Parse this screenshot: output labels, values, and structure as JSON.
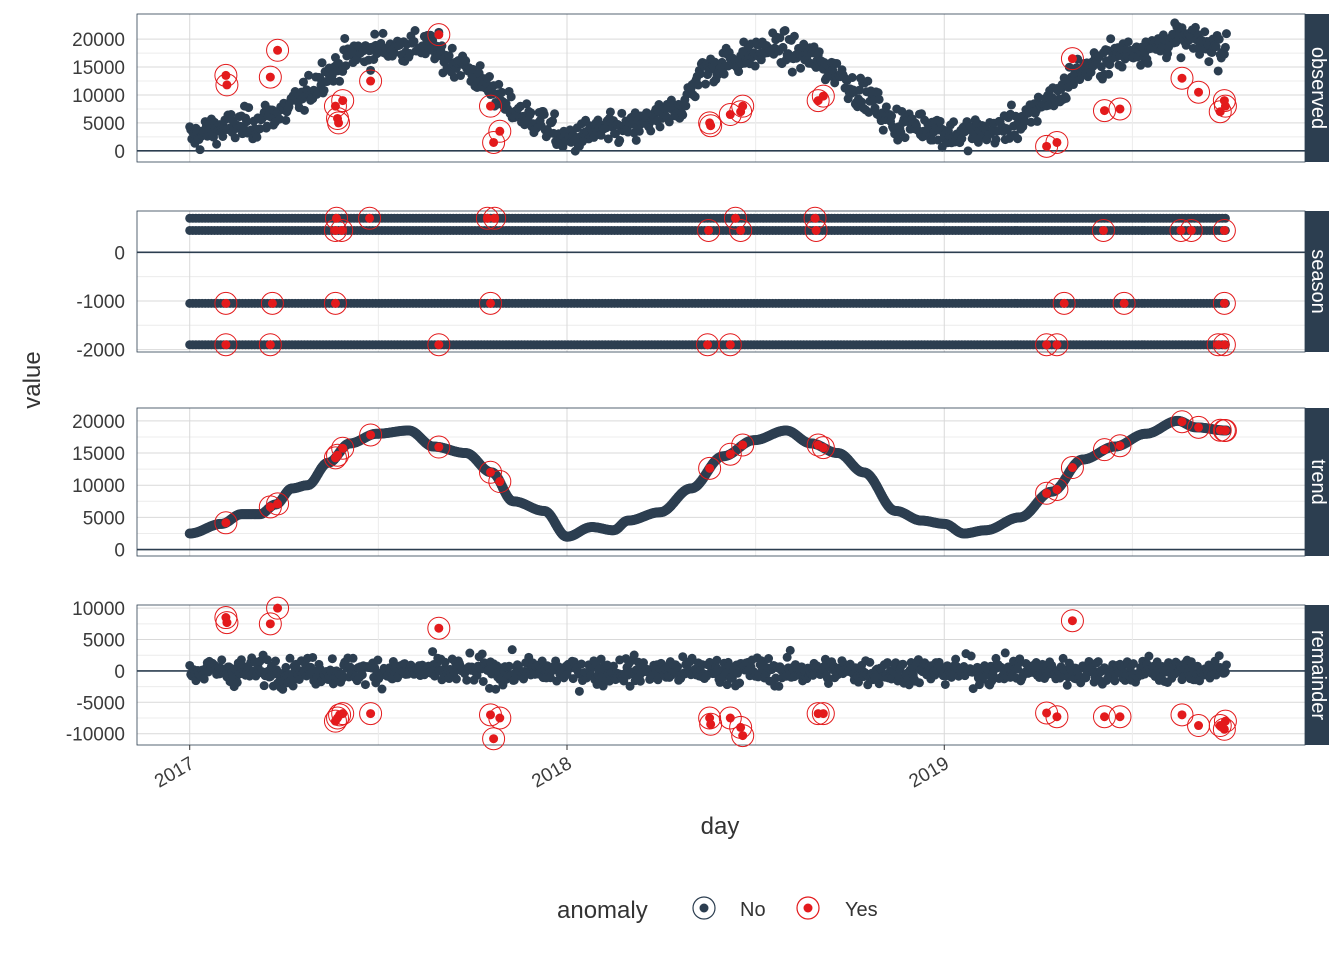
{
  "colors": {
    "no": "#2c3e50",
    "yes": "#e31a1c",
    "strip": "#2c3e50",
    "grid": "#d9d9d9",
    "zero_line": "#2c3e50"
  },
  "chart_data": {
    "type": "scatter",
    "xlabel": "day",
    "ylabel": "value",
    "x_range": [
      "2016-11-11",
      "2019-12-16"
    ],
    "x_ticks": [
      "2017-01-01",
      "2018-01-01",
      "2019-01-01"
    ],
    "x_tick_labels": [
      "2017",
      "2018",
      "2019"
    ],
    "x_data_range": [
      "2017-01-01",
      "2019-10-01"
    ],
    "legend": {
      "title": "anomaly",
      "placement": "bottom",
      "entries": [
        {
          "key": "no",
          "label": "No"
        },
        {
          "key": "yes",
          "label": "Yes"
        }
      ]
    },
    "panels": [
      {
        "name": "observed",
        "ylim": [
          -2000,
          24500
        ],
        "yticks": [
          0,
          5000,
          10000,
          15000,
          20000
        ],
        "ytick_labels": [
          "0",
          "5000",
          "10000",
          "15000",
          "20000"
        ],
        "anchors": [
          [
            "2017-01-01",
            2500
          ],
          [
            "2017-02-01",
            4000
          ],
          [
            "2017-03-01",
            4800
          ],
          [
            "2017-04-01",
            7000
          ],
          [
            "2017-04-20",
            9500
          ],
          [
            "2017-05-15",
            14000
          ],
          [
            "2017-06-10",
            17500
          ],
          [
            "2017-07-15",
            18500
          ],
          [
            "2017-08-15",
            18800
          ],
          [
            "2017-09-15",
            16000
          ],
          [
            "2017-10-15",
            12000
          ],
          [
            "2017-11-05",
            7500
          ],
          [
            "2017-12-01",
            5500
          ],
          [
            "2018-01-01",
            2000
          ],
          [
            "2018-02-01",
            3500
          ],
          [
            "2018-03-01",
            4000
          ],
          [
            "2018-04-01",
            5800
          ],
          [
            "2018-04-20",
            8000
          ],
          [
            "2018-05-15",
            14500
          ],
          [
            "2018-06-15",
            16500
          ],
          [
            "2018-07-20",
            18500
          ],
          [
            "2018-08-20",
            17000
          ],
          [
            "2018-09-15",
            14500
          ],
          [
            "2018-10-15",
            10000
          ],
          [
            "2018-11-15",
            5000
          ],
          [
            "2018-12-15",
            4500
          ],
          [
            "2019-01-10",
            3000
          ],
          [
            "2019-02-15",
            3500
          ],
          [
            "2019-03-15",
            5000
          ],
          [
            "2019-04-15",
            9500
          ],
          [
            "2019-05-15",
            14500
          ],
          [
            "2019-06-15",
            17000
          ],
          [
            "2019-07-15",
            18500
          ],
          [
            "2019-08-15",
            20000
          ],
          [
            "2019-10-01",
            18500
          ]
        ],
        "noise": 2400,
        "anomalies": [
          [
            "2017-02-05",
            13500
          ],
          [
            "2017-02-06",
            11800
          ],
          [
            "2017-03-20",
            13200
          ],
          [
            "2017-03-27",
            18000
          ],
          [
            "2017-05-22",
            8000
          ],
          [
            "2017-05-24",
            5800
          ],
          [
            "2017-05-25",
            5000
          ],
          [
            "2017-05-29",
            9000
          ],
          [
            "2017-06-25",
            12500
          ],
          [
            "2017-08-30",
            20800
          ],
          [
            "2017-10-19",
            8000
          ],
          [
            "2017-10-22",
            1500
          ],
          [
            "2017-10-28",
            3500
          ],
          [
            "2018-05-19",
            5000
          ],
          [
            "2018-05-20",
            4500
          ],
          [
            "2018-06-08",
            6500
          ],
          [
            "2018-06-18",
            7000
          ],
          [
            "2018-06-20",
            8000
          ],
          [
            "2018-09-01",
            9000
          ],
          [
            "2018-09-06",
            9800
          ],
          [
            "2019-04-10",
            800
          ],
          [
            "2019-04-20",
            1500
          ],
          [
            "2019-05-05",
            16500
          ],
          [
            "2019-06-05",
            7200
          ],
          [
            "2019-06-20",
            7500
          ],
          [
            "2019-08-19",
            13000
          ],
          [
            "2019-09-04",
            10500
          ],
          [
            "2019-09-25",
            7000
          ],
          [
            "2019-09-29",
            9000
          ],
          [
            "2019-09-30",
            8000
          ]
        ]
      },
      {
        "name": "season",
        "ylim": [
          -2050,
          850
        ],
        "yticks": [
          -2000,
          -1000,
          0
        ],
        "ytick_labels": [
          "-2000",
          "-1000",
          "0"
        ],
        "levels": [
          700,
          450,
          -1050,
          -1900
        ],
        "level_start": [
          "2017-01-01",
          "2017-01-01",
          "2017-01-01",
          "2017-01-01"
        ],
        "anomalies": [
          [
            "2017-05-23",
            700
          ],
          [
            "2017-06-24",
            700
          ],
          [
            "2017-10-16",
            700
          ],
          [
            "2017-10-23",
            700
          ],
          [
            "2018-06-13",
            700
          ],
          [
            "2018-08-29",
            700
          ],
          [
            "2017-05-22",
            450
          ],
          [
            "2017-05-28",
            450
          ],
          [
            "2018-05-18",
            450
          ],
          [
            "2018-06-18",
            450
          ],
          [
            "2018-08-30",
            450
          ],
          [
            "2019-06-04",
            450
          ],
          [
            "2019-08-18",
            450
          ],
          [
            "2019-08-28",
            450
          ],
          [
            "2019-09-29",
            450
          ],
          [
            "2017-02-05",
            -1050
          ],
          [
            "2017-03-22",
            -1050
          ],
          [
            "2017-05-22",
            -1050
          ],
          [
            "2017-10-19",
            -1050
          ],
          [
            "2019-04-27",
            -1050
          ],
          [
            "2019-06-24",
            -1050
          ],
          [
            "2019-09-29",
            -1050
          ],
          [
            "2017-02-05",
            -1900
          ],
          [
            "2017-03-20",
            -1900
          ],
          [
            "2017-08-30",
            -1900
          ],
          [
            "2018-05-17",
            -1900
          ],
          [
            "2018-06-08",
            -1900
          ],
          [
            "2019-04-10",
            -1900
          ],
          [
            "2019-04-20",
            -1900
          ],
          [
            "2019-09-23",
            -1900
          ],
          [
            "2019-09-29",
            -1900
          ]
        ]
      },
      {
        "name": "trend",
        "ylim": [
          -1000,
          22000
        ],
        "yticks": [
          0,
          5000,
          10000,
          15000,
          20000
        ],
        "ytick_labels": [
          "0",
          "5000",
          "10000",
          "15000",
          "20000"
        ],
        "anchors": [
          [
            "2017-01-01",
            2500
          ],
          [
            "2017-02-01",
            4000
          ],
          [
            "2017-02-20",
            5500
          ],
          [
            "2017-03-10",
            5500
          ],
          [
            "2017-03-25",
            7000
          ],
          [
            "2017-04-10",
            9500
          ],
          [
            "2017-04-25",
            10000
          ],
          [
            "2017-05-15",
            13500
          ],
          [
            "2017-06-05",
            16500
          ],
          [
            "2017-07-01",
            18000
          ],
          [
            "2017-08-01",
            18500
          ],
          [
            "2017-08-25",
            16000
          ],
          [
            "2017-09-25",
            15000
          ],
          [
            "2017-10-20",
            12000
          ],
          [
            "2017-11-10",
            7500
          ],
          [
            "2017-12-10",
            6000
          ],
          [
            "2018-01-01",
            2000
          ],
          [
            "2018-01-25",
            3500
          ],
          [
            "2018-02-15",
            3000
          ],
          [
            "2018-03-01",
            4500
          ],
          [
            "2018-04-01",
            5800
          ],
          [
            "2018-05-01",
            9500
          ],
          [
            "2018-06-01",
            14500
          ],
          [
            "2018-07-01",
            17000
          ],
          [
            "2018-08-01",
            18500
          ],
          [
            "2018-08-25",
            16500
          ],
          [
            "2018-09-20",
            15000
          ],
          [
            "2018-10-15",
            12000
          ],
          [
            "2018-11-15",
            6000
          ],
          [
            "2018-12-10",
            4500
          ],
          [
            "2019-01-01",
            4000
          ],
          [
            "2019-01-20",
            2500
          ],
          [
            "2019-02-10",
            3000
          ],
          [
            "2019-03-15",
            5000
          ],
          [
            "2019-04-15",
            9000
          ],
          [
            "2019-05-15",
            14000
          ],
          [
            "2019-06-15",
            16000
          ],
          [
            "2019-07-15",
            18000
          ],
          [
            "2019-08-15",
            20000
          ],
          [
            "2019-09-01",
            19000
          ],
          [
            "2019-10-01",
            18500
          ]
        ],
        "anomaly_dates": [
          "2017-02-05",
          "2017-03-20",
          "2017-03-27",
          "2017-05-22",
          "2017-05-24",
          "2017-05-29",
          "2017-06-25",
          "2017-08-30",
          "2017-10-19",
          "2017-10-28",
          "2018-05-19",
          "2018-06-08",
          "2018-06-20",
          "2018-09-01",
          "2018-09-06",
          "2019-04-10",
          "2019-04-20",
          "2019-05-05",
          "2019-06-05",
          "2019-06-20",
          "2019-08-19",
          "2019-09-04",
          "2019-09-25",
          "2019-09-29",
          "2019-09-30"
        ]
      },
      {
        "name": "remainder",
        "ylim": [
          -11800,
          10500
        ],
        "yticks": [
          -10000,
          -5000,
          0,
          5000,
          10000
        ],
        "ytick_labels": [
          "-10000",
          "-5000",
          "0",
          "5000",
          "10000"
        ],
        "noise": 1900,
        "anomalies": [
          [
            "2017-02-05",
            8500
          ],
          [
            "2017-02-06",
            7700
          ],
          [
            "2017-03-20",
            7500
          ],
          [
            "2017-03-27",
            10000
          ],
          [
            "2017-05-22",
            -8000
          ],
          [
            "2017-05-24",
            -7500
          ],
          [
            "2017-05-26",
            -7000
          ],
          [
            "2017-05-29",
            -6800
          ],
          [
            "2017-06-25",
            -6800
          ],
          [
            "2017-08-30",
            6800
          ],
          [
            "2017-10-19",
            -7000
          ],
          [
            "2017-10-22",
            -10800
          ],
          [
            "2017-10-28",
            -7500
          ],
          [
            "2018-05-19",
            -7500
          ],
          [
            "2018-05-20",
            -8500
          ],
          [
            "2018-06-08",
            -7500
          ],
          [
            "2018-06-18",
            -9000
          ],
          [
            "2018-06-20",
            -10300
          ],
          [
            "2018-09-01",
            -6800
          ],
          [
            "2018-09-06",
            -6800
          ],
          [
            "2019-04-10",
            -6700
          ],
          [
            "2019-04-20",
            -7300
          ],
          [
            "2019-05-05",
            8000
          ],
          [
            "2019-06-05",
            -7300
          ],
          [
            "2019-06-20",
            -7300
          ],
          [
            "2019-08-19",
            -7000
          ],
          [
            "2019-09-04",
            -8700
          ],
          [
            "2019-09-25",
            -8700
          ],
          [
            "2019-09-29",
            -9300
          ],
          [
            "2019-09-30",
            -8000
          ]
        ]
      }
    ]
  }
}
